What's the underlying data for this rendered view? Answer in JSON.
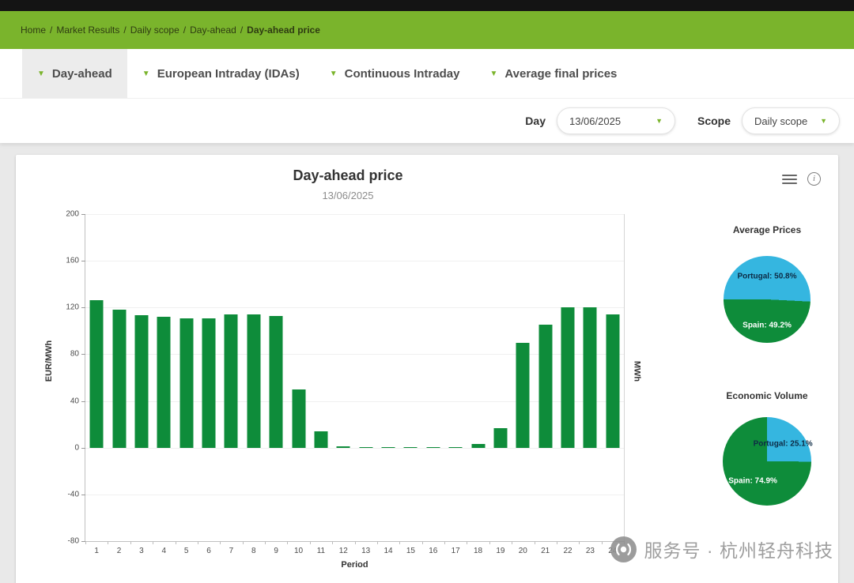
{
  "breadcrumb": {
    "separator": "/",
    "items": [
      "Home",
      "Market Results",
      "Daily scope",
      "Day-ahead",
      "Day-ahead price"
    ]
  },
  "tabs": {
    "items": [
      {
        "label": "Day-ahead",
        "active": true
      },
      {
        "label": "European Intraday (IDAs)",
        "active": false
      },
      {
        "label": "Continuous Intraday",
        "active": false
      },
      {
        "label": "Average final prices",
        "active": false
      }
    ]
  },
  "filters": {
    "day": {
      "label": "Day",
      "value": "13/06/2025"
    },
    "scope": {
      "label": "Scope",
      "value": "Daily scope"
    }
  },
  "card": {
    "title": "Day-ahead price",
    "subtitle": "13/06/2025"
  },
  "chart_data": [
    {
      "type": "bar",
      "title": "Day-ahead price",
      "subtitle": "13/06/2025",
      "xlabel": "Period",
      "ylabel": "EUR/MWh",
      "ylabel_right": "MWh",
      "ylim": [
        -80,
        200
      ],
      "yticks": [
        200,
        160,
        120,
        80,
        40,
        0,
        -40,
        -80
      ],
      "grid": true,
      "bar_color": "#0e8c3a",
      "categories": [
        "1",
        "2",
        "3",
        "4",
        "5",
        "6",
        "7",
        "8",
        "9",
        "10",
        "11",
        "12",
        "13",
        "14",
        "15",
        "16",
        "17",
        "18",
        "19",
        "20",
        "21",
        "22",
        "23",
        "24"
      ],
      "values": [
        126.6,
        118.1,
        113.5,
        111.9,
        110.9,
        110.9,
        113.9,
        113.9,
        112.9,
        49.6,
        13.9,
        0.9,
        0.1,
        0.1,
        0.1,
        0.1,
        0.3,
        3.2,
        17.0,
        90.0,
        105.5,
        120.0,
        120.1,
        113.9
      ]
    },
    {
      "type": "pie",
      "title": "Average Prices",
      "start_angle": 270,
      "slices": [
        {
          "label": "Portugal",
          "value": 50.8,
          "color": "#35b6e0",
          "text": "Portugal: 50.8%",
          "label_color": "#0d2b45",
          "label_pos": [
            50,
            24
          ]
        },
        {
          "label": "Spain",
          "value": 49.2,
          "color": "#0e8c3a",
          "text": "Spain: 49.2%",
          "label_color": "#ffffff",
          "label_pos": [
            50,
            80
          ]
        }
      ]
    },
    {
      "type": "pie",
      "title": "Economic Volume",
      "start_angle": 0,
      "slices": [
        {
          "label": "Portugal",
          "value": 25.1,
          "color": "#35b6e0",
          "text": "Portugal: 25.1%",
          "label_color": "#0d2b45",
          "label_pos": [
            68,
            30
          ]
        },
        {
          "label": "Spain",
          "value": 74.9,
          "color": "#0e8c3a",
          "text": "Spain: 74.9%",
          "label_color": "#ffffff",
          "label_pos": [
            34,
            72
          ]
        }
      ]
    }
  ],
  "watermark": {
    "text": "服务号 · 杭州轻舟科技"
  }
}
